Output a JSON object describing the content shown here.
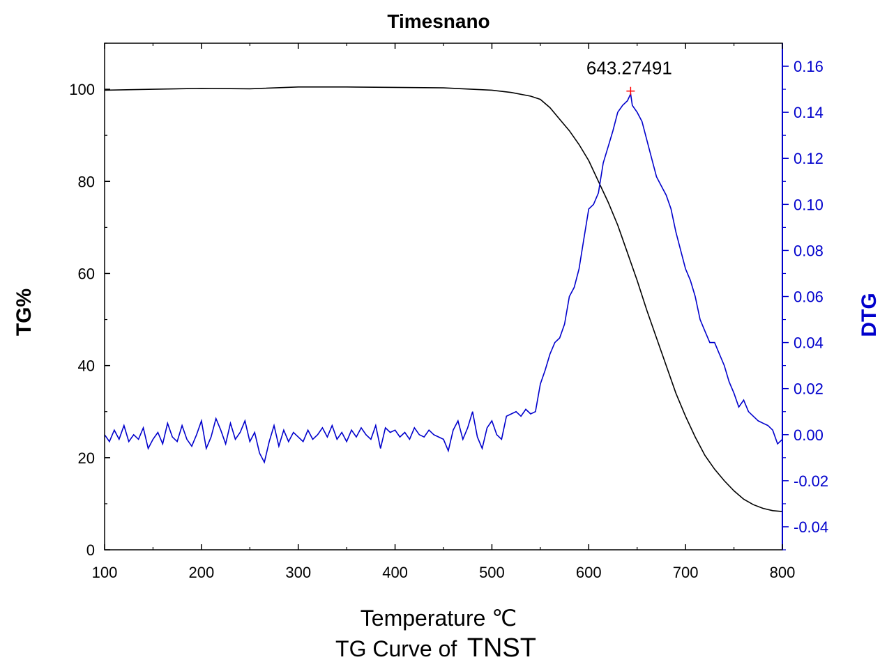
{
  "chart_data": {
    "type": "line",
    "title": "Timesnano",
    "xlabel": "Temperature ℃",
    "ylabel_left": "TG%",
    "ylabel_right": "DTG",
    "caption": "TG Curve of",
    "caption_emph": "TNST",
    "xlim": [
      100,
      800
    ],
    "ylim_left": [
      0,
      110
    ],
    "ylim_right": [
      -0.05,
      0.17
    ],
    "x_ticks": [
      "100",
      "200",
      "300",
      "400",
      "500",
      "600",
      "700",
      "800"
    ],
    "y_left_ticks": [
      "0",
      "20",
      "40",
      "60",
      "80",
      "100"
    ],
    "y_right_ticks": [
      "-0.04",
      "-0.02",
      "0.00",
      "0.02",
      "0.04",
      "0.06",
      "0.08",
      "0.10",
      "0.12",
      "0.14",
      "0.16"
    ],
    "grid": false,
    "colors": {
      "tg": "#000000",
      "dtg": "#0000cc",
      "peak_marker": "#ff0000"
    },
    "annotation": {
      "text": "643.27491",
      "x": 643.27,
      "y": 0.148
    },
    "series": [
      {
        "axis": "left",
        "color": "#000000",
        "x": [
          100,
          150,
          200,
          250,
          300,
          350,
          400,
          450,
          500,
          520,
          540,
          550,
          560,
          570,
          580,
          590,
          600,
          610,
          620,
          630,
          640,
          650,
          660,
          670,
          680,
          690,
          700,
          710,
          720,
          730,
          740,
          750,
          760,
          770,
          780,
          790,
          800
        ],
        "y": [
          99.8,
          100.0,
          100.2,
          100.1,
          100.5,
          100.5,
          100.4,
          100.3,
          99.8,
          99.3,
          98.5,
          97.8,
          96.0,
          93.5,
          91.0,
          88.0,
          84.5,
          80.0,
          75.5,
          70.5,
          64.5,
          58.5,
          52.0,
          46.0,
          40.0,
          34.0,
          29.0,
          24.5,
          20.5,
          17.5,
          15.0,
          12.8,
          11.0,
          9.8,
          9.0,
          8.5,
          8.3
        ]
      },
      {
        "axis": "right",
        "color": "#0000cc",
        "x": [
          100,
          105,
          110,
          115,
          120,
          125,
          130,
          135,
          140,
          145,
          150,
          155,
          160,
          165,
          170,
          175,
          180,
          185,
          190,
          195,
          200,
          205,
          210,
          215,
          220,
          225,
          230,
          235,
          240,
          245,
          250,
          255,
          260,
          265,
          270,
          275,
          280,
          285,
          290,
          295,
          300,
          305,
          310,
          315,
          320,
          325,
          330,
          335,
          340,
          345,
          350,
          355,
          360,
          365,
          370,
          375,
          380,
          385,
          390,
          395,
          400,
          405,
          410,
          415,
          420,
          425,
          430,
          435,
          440,
          445,
          450,
          455,
          460,
          465,
          470,
          475,
          480,
          485,
          490,
          495,
          500,
          505,
          510,
          515,
          520,
          525,
          530,
          535,
          540,
          545,
          550,
          555,
          560,
          565,
          570,
          575,
          580,
          585,
          590,
          595,
          600,
          605,
          610,
          615,
          620,
          625,
          630,
          635,
          640,
          643.27,
          645,
          650,
          655,
          660,
          665,
          670,
          675,
          680,
          685,
          690,
          695,
          700,
          705,
          710,
          715,
          720,
          725,
          730,
          735,
          740,
          745,
          750,
          755,
          760,
          765,
          770,
          775,
          780,
          785,
          790,
          795,
          800
        ],
        "y": [
          0.0,
          -0.003,
          0.002,
          -0.002,
          0.004,
          -0.003,
          0.0,
          -0.002,
          0.003,
          -0.006,
          -0.002,
          0.001,
          -0.004,
          0.005,
          -0.001,
          -0.003,
          0.004,
          -0.002,
          -0.005,
          0.0,
          0.006,
          -0.006,
          -0.001,
          0.007,
          0.002,
          -0.004,
          0.005,
          -0.002,
          0.001,
          0.006,
          -0.003,
          0.001,
          -0.008,
          -0.012,
          -0.003,
          0.004,
          -0.005,
          0.002,
          -0.003,
          0.001,
          -0.001,
          -0.003,
          0.002,
          -0.002,
          0.0,
          0.003,
          -0.001,
          0.004,
          -0.002,
          0.001,
          -0.003,
          0.002,
          -0.001,
          0.003,
          0.0,
          -0.002,
          0.004,
          -0.006,
          0.003,
          0.001,
          0.002,
          -0.001,
          0.001,
          -0.002,
          0.003,
          0.0,
          -0.001,
          0.002,
          0.0,
          -0.001,
          -0.002,
          -0.007,
          0.002,
          0.006,
          -0.002,
          0.003,
          0.01,
          -0.001,
          -0.006,
          0.003,
          0.006,
          0.0,
          -0.002,
          0.008,
          0.009,
          0.01,
          0.008,
          0.011,
          0.009,
          0.01,
          0.022,
          0.028,
          0.035,
          0.04,
          0.042,
          0.048,
          0.06,
          0.064,
          0.072,
          0.085,
          0.098,
          0.1,
          0.105,
          0.118,
          0.125,
          0.132,
          0.14,
          0.143,
          0.145,
          0.148,
          0.143,
          0.14,
          0.136,
          0.128,
          0.12,
          0.112,
          0.108,
          0.104,
          0.098,
          0.088,
          0.08,
          0.072,
          0.067,
          0.06,
          0.05,
          0.045,
          0.04,
          0.04,
          0.035,
          0.03,
          0.023,
          0.018,
          0.012,
          0.015,
          0.01,
          0.008,
          0.006,
          0.005,
          0.004,
          0.002,
          -0.004,
          -0.002
        ]
      }
    ]
  }
}
